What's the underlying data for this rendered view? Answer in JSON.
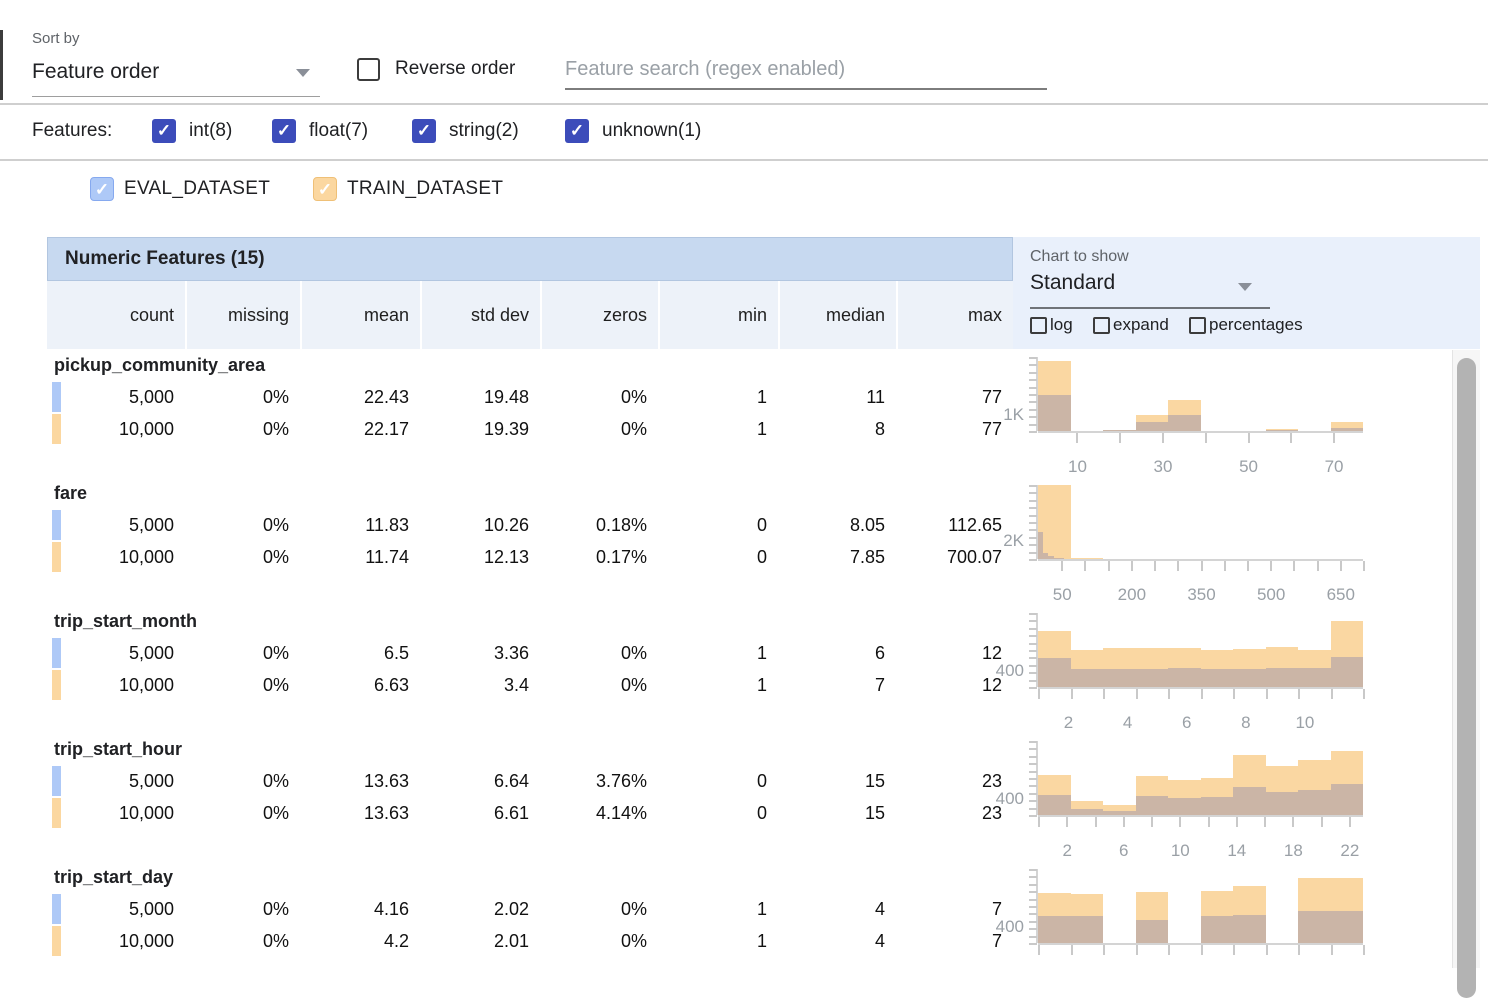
{
  "toolbar": {
    "sort_by_label": "Sort by",
    "sort_value": "Feature order",
    "reverse_label": "Reverse order",
    "search_placeholder": "Feature search (regex enabled)"
  },
  "filter": {
    "label": "Features:",
    "check_glyph": "✓",
    "types": [
      {
        "label": "int(8)",
        "checked": true
      },
      {
        "label": "float(7)",
        "checked": true
      },
      {
        "label": "string(2)",
        "checked": true
      },
      {
        "label": "unknown(1)",
        "checked": true
      }
    ]
  },
  "datasets": [
    {
      "name": "EVAL_DATASET",
      "fill": "#aec9f7",
      "border": "#86a9ef",
      "count_label": "5,000"
    },
    {
      "name": "TRAIN_DATASET",
      "fill": "#fbd7a0",
      "border": "#efc077",
      "count_label": "10,000"
    }
  ],
  "table": {
    "title": "Numeric Features (15)",
    "columns": [
      "count",
      "missing",
      "mean",
      "std dev",
      "zeros",
      "min",
      "median",
      "max"
    ]
  },
  "chart_controls": {
    "label": "Chart to show",
    "value": "Standard",
    "options": [
      "log",
      "expand",
      "percentages"
    ]
  },
  "colors": {
    "train_bar": "#fad7a2",
    "overlap_bar": "#cbb5a6",
    "title_bg": "#c7d9f0",
    "header_bg": "#edf2f9",
    "panel_bg": "#e9f0fb"
  },
  "features": [
    {
      "name": "pickup_community_area",
      "rows": [
        {
          "dataset": "EVAL_DATASET",
          "values": [
            "5,000",
            "0%",
            "22.43",
            "19.48",
            "0%",
            "1",
            "11",
            "77"
          ]
        },
        {
          "dataset": "TRAIN_DATASET",
          "values": [
            "10,000",
            "0%",
            "22.17",
            "19.39",
            "0%",
            "1",
            "8",
            "77"
          ]
        }
      ]
    },
    {
      "name": "fare",
      "rows": [
        {
          "dataset": "EVAL_DATASET",
          "values": [
            "5,000",
            "0%",
            "11.83",
            "10.26",
            "0.18%",
            "0",
            "8.05",
            "112.65"
          ]
        },
        {
          "dataset": "TRAIN_DATASET",
          "values": [
            "10,000",
            "0%",
            "11.74",
            "12.13",
            "0.17%",
            "0",
            "7.85",
            "700.07"
          ]
        }
      ]
    },
    {
      "name": "trip_start_month",
      "rows": [
        {
          "dataset": "EVAL_DATASET",
          "values": [
            "5,000",
            "0%",
            "6.5",
            "3.36",
            "0%",
            "1",
            "6",
            "12"
          ]
        },
        {
          "dataset": "TRAIN_DATASET",
          "values": [
            "10,000",
            "0%",
            "6.63",
            "3.4",
            "0%",
            "1",
            "7",
            "12"
          ]
        }
      ]
    },
    {
      "name": "trip_start_hour",
      "rows": [
        {
          "dataset": "EVAL_DATASET",
          "values": [
            "5,000",
            "0%",
            "13.63",
            "6.64",
            "3.76%",
            "0",
            "15",
            "23"
          ]
        },
        {
          "dataset": "TRAIN_DATASET",
          "values": [
            "10,000",
            "0%",
            "13.63",
            "6.61",
            "4.14%",
            "0",
            "15",
            "23"
          ]
        }
      ]
    },
    {
      "name": "trip_start_day",
      "rows": [
        {
          "dataset": "EVAL_DATASET",
          "values": [
            "5,000",
            "0%",
            "4.16",
            "2.02",
            "0%",
            "1",
            "4",
            "7"
          ]
        },
        {
          "dataset": "TRAIN_DATASET",
          "values": [
            "10,000",
            "0%",
            "4.2",
            "2.01",
            "0%",
            "1",
            "4",
            "7"
          ]
        }
      ]
    }
  ],
  "chart_data": [
    {
      "type": "bar",
      "feature": "pickup_community_area",
      "x_domain": [
        1,
        77
      ],
      "y_max": 4750,
      "y_label": {
        "text": "1K",
        "value": 1000
      },
      "x_tick_labels": [
        10,
        30,
        50,
        70
      ],
      "x_minor_ticks": [
        10,
        20,
        30,
        40,
        50,
        60,
        70
      ],
      "series": [
        {
          "name": "TRAIN_DATASET",
          "x_domain": [
            1,
            77
          ],
          "counts": [
            4500,
            30,
            80,
            1050,
            2000,
            10,
            10,
            100,
            5,
            550
          ]
        },
        {
          "name": "EVAL_DATASET",
          "x_domain": [
            1,
            77
          ],
          "counts": [
            2300,
            15,
            40,
            550,
            1050,
            5,
            5,
            50,
            2,
            200
          ]
        }
      ]
    },
    {
      "type": "bar",
      "feature": "fare",
      "x_domain": [
        0,
        700
      ],
      "y_max": 8250,
      "y_label": {
        "text": "2K",
        "value": 2000
      },
      "x_tick_labels": [
        50,
        200,
        350,
        500,
        650
      ],
      "x_minor_ticks": [
        50,
        100,
        150,
        200,
        250,
        300,
        350,
        400,
        450,
        500,
        550,
        600,
        650,
        700
      ],
      "series": [
        {
          "name": "TRAIN_DATASET",
          "x_domain": [
            0,
            700
          ],
          "counts": [
            8200,
            120,
            40,
            15,
            8,
            5,
            3,
            2,
            1,
            3
          ]
        },
        {
          "name": "EVAL_DATASET",
          "x_domain": [
            0,
            112.65
          ],
          "counts": [
            3000,
            650,
            300,
            150,
            80,
            40,
            25,
            15,
            10,
            5
          ]
        }
      ]
    },
    {
      "type": "bar",
      "feature": "trip_start_month",
      "x_domain": [
        1,
        12
      ],
      "y_max": 1900,
      "y_label": {
        "text": "400",
        "value": 400
      },
      "x_tick_labels": [
        2,
        4,
        6,
        8,
        10
      ],
      "x_minor_ticks": [
        1,
        2.1,
        3.2,
        4.3,
        5.4,
        6.5,
        7.6,
        8.7,
        9.8,
        10.9,
        12
      ],
      "series": [
        {
          "name": "TRAIN_DATASET",
          "x_domain": [
            1,
            12
          ],
          "counts": [
            1450,
            950,
            1000,
            1000,
            990,
            960,
            980,
            1030,
            960,
            1700
          ]
        },
        {
          "name": "EVAL_DATASET",
          "x_domain": [
            1,
            12
          ],
          "counts": [
            750,
            450,
            460,
            475,
            480,
            470,
            465,
            480,
            500,
            760
          ]
        }
      ]
    },
    {
      "type": "bar",
      "feature": "trip_start_hour",
      "x_domain": [
        0,
        23
      ],
      "y_max": 1900,
      "y_label": {
        "text": "400",
        "value": 400
      },
      "x_tick_labels": [
        2,
        6,
        10,
        14,
        18,
        22
      ],
      "x_minor_ticks": [
        0,
        2,
        4,
        6,
        8,
        10,
        12,
        14,
        16,
        18,
        20,
        22
      ],
      "series": [
        {
          "name": "TRAIN_DATASET",
          "x_domain": [
            0,
            23
          ],
          "counts": [
            1025,
            350,
            250,
            1000,
            900,
            950,
            1550,
            1250,
            1400,
            1650
          ]
        },
        {
          "name": "EVAL_DATASET",
          "x_domain": [
            0,
            23
          ],
          "counts": [
            525,
            160,
            110,
            480,
            430,
            460,
            725,
            600,
            650,
            800
          ]
        }
      ]
    },
    {
      "type": "bar",
      "feature": "trip_start_day",
      "x_domain": [
        1,
        7
      ],
      "y_max": 1900,
      "y_label": {
        "text": "400",
        "value": 400
      },
      "x_tick_labels": [],
      "x_minor_ticks": [
        1,
        1.6,
        2.2,
        2.8,
        3.4,
        4,
        4.6,
        5.2,
        5.8,
        6.4,
        7
      ],
      "series": [
        {
          "name": "TRAIN_DATASET",
          "x_domain": [
            1,
            7
          ],
          "counts": [
            1275,
            1270,
            0,
            1300,
            0,
            1330,
            1475,
            0,
            1675,
            1660
          ]
        },
        {
          "name": "EVAL_DATASET",
          "x_domain": [
            1,
            7
          ],
          "counts": [
            700,
            695,
            0,
            600,
            0,
            690,
            730,
            0,
            830,
            825
          ]
        }
      ]
    }
  ]
}
